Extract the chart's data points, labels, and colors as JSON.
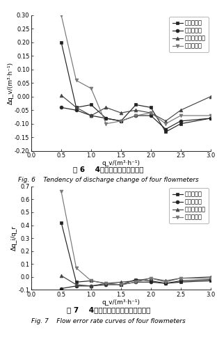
{
  "fig6": {
    "title_cn": "图 6    4种流量计流量变化趋势",
    "title_en": "Fig. 6    Tendency of discharge change of four flowmeters",
    "xlabel": "q_v/(m³·h⁻¹)",
    "ylabel": "Δq_v/(m³·h⁻¹)",
    "xlim": [
      0.0,
      3.0
    ],
    "ylim": [
      -0.2,
      0.3
    ],
    "xticks": [
      0.0,
      0.5,
      1.0,
      1.5,
      2.0,
      2.5,
      3.0
    ],
    "yticks": [
      -0.2,
      -0.15,
      -0.1,
      -0.05,
      0.0,
      0.05,
      0.1,
      0.15,
      0.2,
      0.25,
      0.3
    ],
    "series": [
      {
        "label": "电磁流量计",
        "marker": "s",
        "color": "#222222",
        "x": [
          0.5,
          0.75,
          1.0,
          1.25,
          1.5,
          1.75,
          2.0,
          2.25,
          2.5,
          3.0
        ],
        "y": [
          0.2,
          -0.04,
          -0.03,
          -0.08,
          -0.09,
          -0.03,
          -0.04,
          -0.13,
          -0.1,
          -0.08
        ]
      },
      {
        "label": "涡轮流量计",
        "marker": "o",
        "color": "#222222",
        "x": [
          0.5,
          0.75,
          1.0,
          1.25,
          1.5,
          1.75,
          2.0,
          2.25,
          2.5,
          3.0
        ],
        "y": [
          -0.04,
          -0.05,
          -0.07,
          -0.08,
          -0.09,
          -0.07,
          -0.07,
          -0.12,
          -0.09,
          -0.08
        ]
      },
      {
        "label": "文丘里流量计",
        "marker": "^",
        "color": "#444444",
        "x": [
          0.5,
          0.75,
          1.0,
          1.25,
          1.5,
          1.75,
          2.0,
          2.25,
          2.5,
          3.0
        ],
        "y": [
          0.005,
          -0.04,
          -0.07,
          -0.04,
          -0.06,
          -0.05,
          -0.06,
          -0.09,
          -0.05,
          0.0
        ]
      },
      {
        "label": "孔板流量计",
        "marker": "v",
        "color": "#777777",
        "x": [
          0.5,
          0.75,
          1.0,
          1.25,
          1.5,
          1.75,
          2.0,
          2.25,
          2.5,
          3.0
        ],
        "y": [
          0.3,
          0.06,
          0.03,
          -0.1,
          -0.09,
          -0.07,
          -0.06,
          -0.1,
          -0.07,
          -0.07
        ]
      }
    ]
  },
  "fig7": {
    "title_cn": "图 7    4种流量计流量误差百分率曲线",
    "title_en": "Fig. 7    Flow error rate curves of four flowmeters",
    "xlabel": "q_v/(m³·h⁻¹)",
    "ylabel": "Δq_i/q_r",
    "xlim": [
      0.0,
      3.0
    ],
    "ylim": [
      -0.1,
      0.7
    ],
    "xticks": [
      0.0,
      0.5,
      1.0,
      1.5,
      2.0,
      2.5,
      3.0
    ],
    "yticks": [
      -0.1,
      0.0,
      0.1,
      0.2,
      0.3,
      0.4,
      0.5,
      0.6,
      0.7
    ],
    "series": [
      {
        "label": "电磁流量计",
        "marker": "s",
        "color": "#222222",
        "x": [
          0.5,
          0.75,
          1.0,
          1.25,
          1.5,
          1.75,
          2.0,
          2.25,
          2.5,
          3.0
        ],
        "y": [
          0.42,
          -0.04,
          -0.03,
          -0.05,
          -0.06,
          -0.02,
          -0.03,
          -0.05,
          -0.04,
          -0.03
        ]
      },
      {
        "label": "涡轮流量计",
        "marker": "o",
        "color": "#222222",
        "x": [
          0.5,
          0.75,
          1.0,
          1.25,
          1.5,
          1.75,
          2.0,
          2.25,
          2.5,
          3.0
        ],
        "y": [
          -0.09,
          -0.07,
          -0.07,
          -0.06,
          -0.06,
          -0.04,
          -0.04,
          -0.05,
          -0.03,
          -0.02
        ]
      },
      {
        "label": "文丘里流量计",
        "marker": "^",
        "color": "#444444",
        "x": [
          0.5,
          0.75,
          1.0,
          1.25,
          1.5,
          1.75,
          2.0,
          2.25,
          2.5,
          3.0
        ],
        "y": [
          0.01,
          -0.06,
          -0.07,
          -0.05,
          -0.04,
          -0.03,
          -0.01,
          -0.03,
          -0.01,
          0.0
        ]
      },
      {
        "label": "孔板流量计",
        "marker": "v",
        "color": "#777777",
        "x": [
          0.5,
          0.75,
          1.0,
          1.25,
          1.5,
          1.75,
          2.0,
          2.25,
          2.5,
          3.0
        ],
        "y": [
          0.66,
          0.07,
          -0.03,
          -0.05,
          -0.06,
          -0.04,
          -0.01,
          -0.04,
          -0.01,
          -0.01
        ]
      }
    ]
  },
  "bg_color": "#ffffff",
  "fontsize_label": 6.5,
  "fontsize_tick": 6,
  "fontsize_legend": 6,
  "fontsize_title_cn": 7.5,
  "fontsize_title_en": 6.5,
  "markersize": 3.5,
  "linewidth": 0.85
}
